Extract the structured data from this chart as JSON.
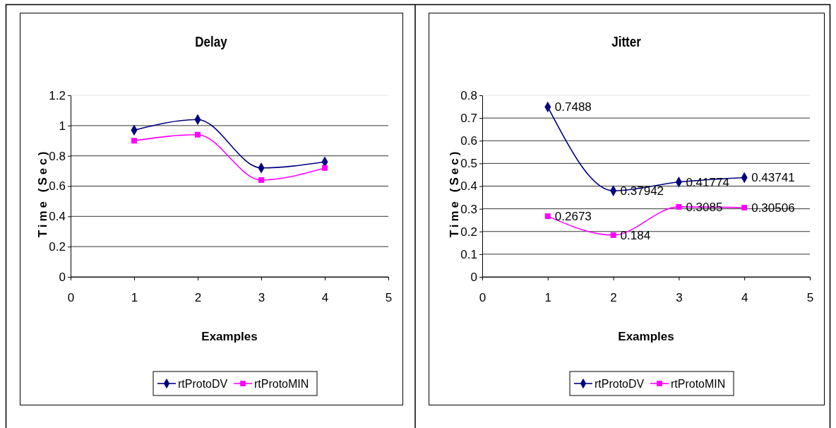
{
  "chart_data": [
    {
      "type": "line",
      "title": "Delay",
      "xlabel": "Examples",
      "ylabel": "Time (Sec)",
      "xlim": [
        0,
        5
      ],
      "xticks": [
        0,
        1,
        2,
        3,
        4,
        5
      ],
      "ylim": [
        0,
        1.2
      ],
      "yticks": [
        0,
        0.2,
        0.4,
        0.6,
        0.8,
        1,
        1.2
      ],
      "grid": "y",
      "legend": "bottom",
      "x": [
        1,
        2,
        3,
        4
      ],
      "series": [
        {
          "name": "rtProtoDV",
          "color": "#000080",
          "marker": "diamond",
          "values": [
            0.97,
            1.04,
            0.72,
            0.76
          ]
        },
        {
          "name": "rtProtoMIN",
          "color": "#ff00ff",
          "marker": "square",
          "values": [
            0.9,
            0.94,
            0.64,
            0.72
          ]
        }
      ]
    },
    {
      "type": "line",
      "title": "Jitter",
      "xlabel": "Examples",
      "ylabel": "Time (Sec)",
      "xlim": [
        0,
        5
      ],
      "xticks": [
        0,
        1,
        2,
        3,
        4,
        5
      ],
      "ylim": [
        0,
        0.8
      ],
      "yticks": [
        0,
        0.1,
        0.2,
        0.3,
        0.4,
        0.5,
        0.6,
        0.7,
        0.8
      ],
      "grid": "y",
      "legend": "bottom",
      "data_labels": true,
      "x": [
        1,
        2,
        3,
        4
      ],
      "series": [
        {
          "name": "rtProtoDV",
          "color": "#000080",
          "marker": "diamond",
          "values": [
            0.7488,
            0.37942,
            0.41774,
            0.43741
          ]
        },
        {
          "name": "rtProtoMIN",
          "color": "#ff00ff",
          "marker": "square",
          "values": [
            0.2673,
            0.184,
            0.3085,
            0.30506
          ]
        }
      ]
    }
  ]
}
